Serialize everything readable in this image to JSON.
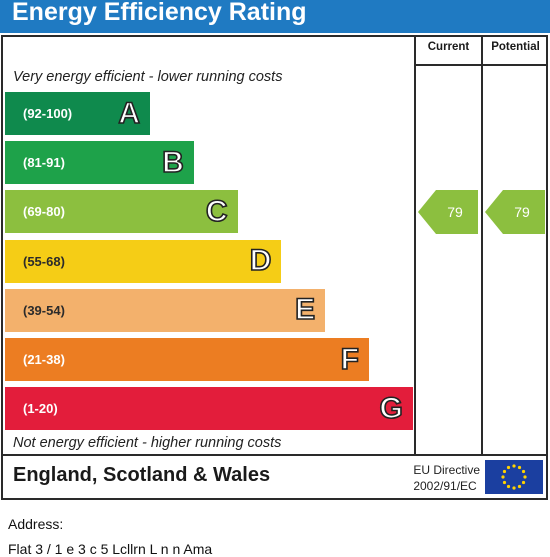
{
  "title": "Energy Efficiency Rating",
  "columns": {
    "current": "Current",
    "potential": "Potential"
  },
  "scale_top_note": "Very energy efficient - lower running costs",
  "scale_bottom_note": "Not energy efficient - higher running costs",
  "chart_data": {
    "type": "bar",
    "categories": [
      "A",
      "B",
      "C",
      "D",
      "E",
      "F",
      "G"
    ],
    "ranges": [
      "(92-100)",
      "(81-91)",
      "(69-80)",
      "(55-68)",
      "(39-54)",
      "(21-38)",
      "(1-20)"
    ],
    "band_colors": [
      "#0f8a4d",
      "#1ea24a",
      "#8cbf3f",
      "#f5cd16",
      "#f3b16c",
      "#ec7d22",
      "#e31d3b"
    ],
    "current": 79,
    "potential": 79,
    "current_band": "C",
    "potential_band": "C",
    "indicator_color": "#8cbf3f"
  },
  "footer": {
    "region": "England, Scotland & Wales",
    "eu_line1": "EU Directive",
    "eu_line2": "2002/91/EC",
    "flag": "eu-flag-icon"
  },
  "address_label": "Address:",
  "address_line": "Flat 3 / 1 e 3 c 5 Lcllrn L n n  Ama"
}
